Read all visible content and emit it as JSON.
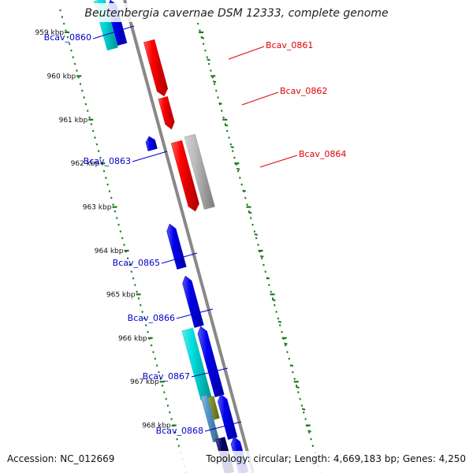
{
  "title": "Beutenbergia cavernae DSM 12333, complete genome",
  "footer": {
    "accession": "Accession: NC_012669",
    "summary": "Topology: circular; Length: 4,669,183 bp; Genes: 4,250"
  },
  "colors": {
    "backbone": "#888888",
    "ticks": "#1a7a1a",
    "label_plus": "#e00000",
    "label_minus": "#0000cc",
    "red": "#ff0000",
    "blue": "#0000ee",
    "cyan": "#00dede",
    "gray": "#bbbbbb",
    "olive": "#889933",
    "steel": "#5599cc",
    "navy": "#000066"
  },
  "ticks": [
    {
      "label": "959 kbp"
    },
    {
      "label": "960 kbp"
    },
    {
      "label": "961 kbp"
    },
    {
      "label": "962 kbp"
    },
    {
      "label": "963 kbp"
    },
    {
      "label": "964 kbp"
    },
    {
      "label": "965 kbp"
    },
    {
      "label": "966 kbp"
    },
    {
      "label": "967 kbp"
    },
    {
      "label": "968 kbp"
    }
  ],
  "gene_labels": [
    {
      "name": "Bcav_0860",
      "strand": "minus"
    },
    {
      "name": "Bcav_0861",
      "strand": "plus"
    },
    {
      "name": "Bcav_0862",
      "strand": "plus"
    },
    {
      "name": "Bcav_0863",
      "strand": "minus"
    },
    {
      "name": "Bcav_0864",
      "strand": "plus"
    },
    {
      "name": "Bcav_0865",
      "strand": "minus"
    },
    {
      "name": "Bcav_0866",
      "strand": "minus"
    },
    {
      "name": "Bcav_0867",
      "strand": "minus"
    },
    {
      "name": "Bcav_0868",
      "strand": "minus"
    }
  ]
}
